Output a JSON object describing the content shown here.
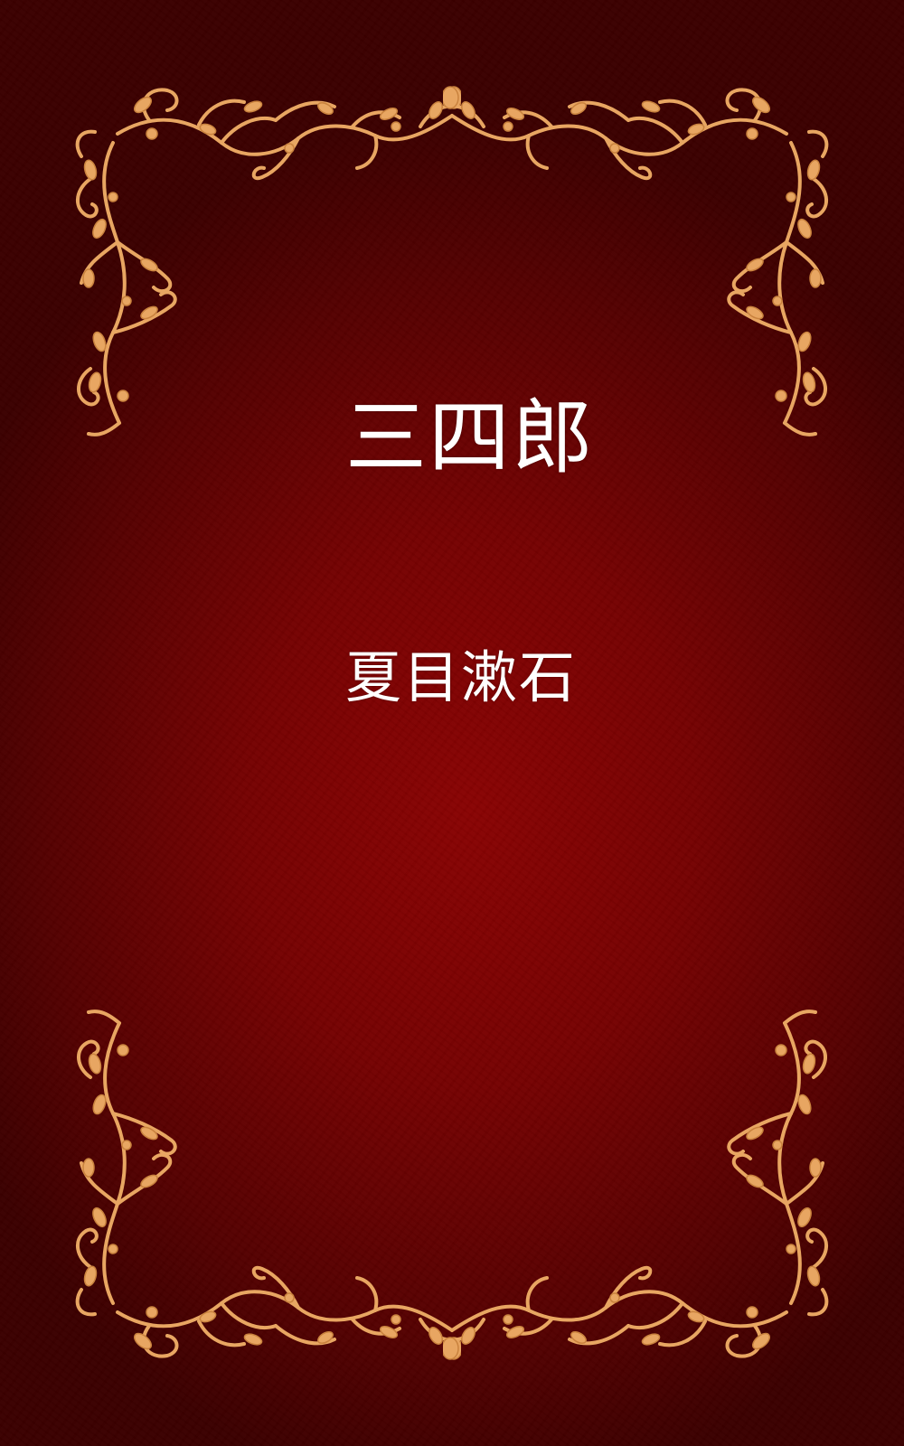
{
  "cover": {
    "title": "三四郎",
    "author": "夏目漱石",
    "colors": {
      "background_center": "#8a0404",
      "background_edge": "#3c0101",
      "ornament": "#e8a662",
      "ornament_stroke": "#c9823e",
      "text": "#ffffff"
    }
  }
}
